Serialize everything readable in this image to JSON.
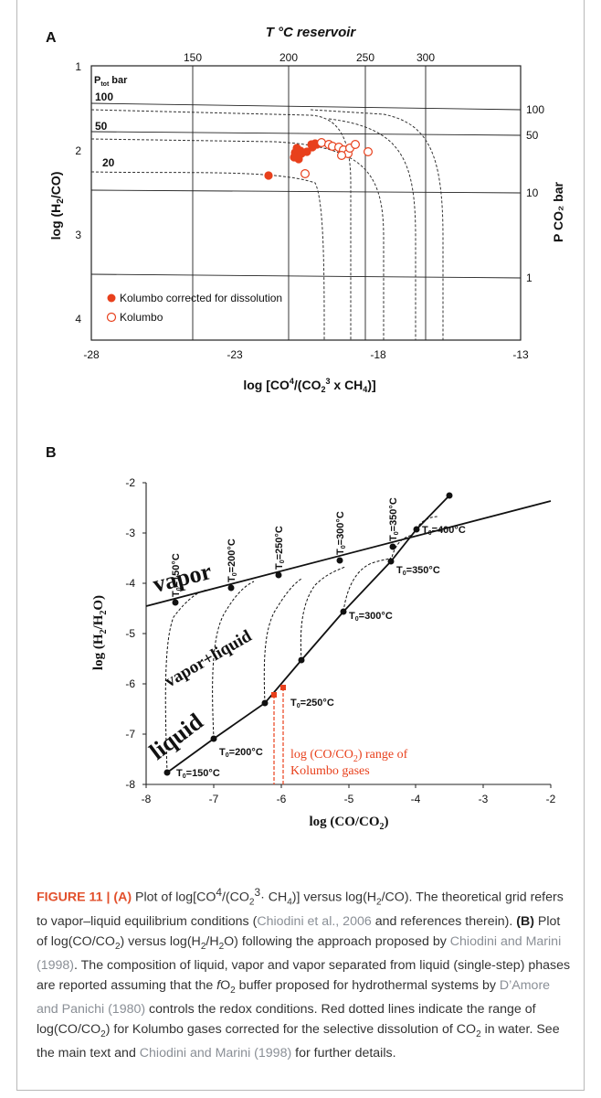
{
  "panel_a": {
    "label": "A",
    "top_axis_title": "T °C reservoir",
    "top_ticks": [
      "150",
      "200",
      "250",
      "300"
    ],
    "x_ticks": [
      "-28",
      "-23",
      "-18",
      "-13"
    ],
    "y_ticks": [
      "1",
      "2",
      "3",
      "4"
    ],
    "ptot_label": "P",
    "ptot_sub": "tot",
    "ptot_unit": "bar",
    "pressure_left_labels": [
      "100",
      "50",
      "20"
    ],
    "pressure_right_labels": [
      "100",
      "50",
      "10",
      "1"
    ],
    "right_axis_title": "P CO₂ bar",
    "y_title_main": "log (H",
    "y_title_sub": "2",
    "y_title_end": "/CO)",
    "x_title_a": "log [CO",
    "x_title_sup1": "4",
    "x_title_b": "/(CO",
    "x_title_sub": "2",
    "x_title_sup2": "3",
    "x_title_c": " x CH",
    "x_title_sub2": "4",
    "x_title_d": ")]",
    "legend_filled": "Kolumbo corrected for dissolution",
    "legend_open": "Kolumbo",
    "marker_color": "#e8401c"
  },
  "panel_b": {
    "label": "B",
    "y_ticks": [
      "-2",
      "-3",
      "-4",
      "-5",
      "-6",
      "-7",
      "-8"
    ],
    "x_ticks": [
      "-8",
      "-7",
      "-6",
      "-5",
      "-4",
      "-3",
      "-2"
    ],
    "vapor_label": "vapor",
    "mix_label": "vapor+liquid",
    "liquid_label": "liquid",
    "t0_prefix": "T",
    "t0_sub": "0",
    "top_temps": [
      "=150°C",
      "=200°C",
      "=250°C",
      "=300°C",
      "=350°C"
    ],
    "liquid_temps": [
      "=400°C",
      "=350°C",
      "=300°C",
      "=250°C",
      "=200°C",
      "=150°C"
    ],
    "annotation_line1": "log (CO/CO",
    "annotation_sub": "2",
    "annotation_line1_end": ") range of",
    "annotation_line2": "Kolumbo gases",
    "x_title": "log (CO/CO",
    "x_title_sub": "2",
    "x_title_end": ")",
    "y_title": "log (H",
    "y_title_sub": "2",
    "y_title_mid": "/H",
    "y_title_sub2": "2",
    "y_title_end": "O)",
    "red_color": "#e8401c"
  },
  "caption": {
    "figure": "FIGURE 11 | (A)",
    "t1": " Plot of log[CO",
    "t1_sup": "4",
    "t2": "/(CO",
    "t2_sub": "2",
    "t2_sup": "3",
    "t3": "· CH",
    "t3_sub": "4",
    "t4": ")] versus log(H",
    "t4_sub": "2",
    "t5": "/CO). The theoretical grid refers to vapor–liquid equilibrium conditions (",
    "ref1": "Chiodini et al., 2006",
    "t6": " and references therein). ",
    "b_label": "(B)",
    "t7": " Plot of log(CO/CO",
    "t7_sub": "2",
    "t8": ") versus log(H",
    "t8_sub": "2",
    "t9": "/H",
    "t9_sub": "2",
    "t10": "O) following the approach proposed by ",
    "ref2": "Chiodini and Marini (1998)",
    "t11": ". The composition of liquid, vapor and vapor separated from liquid (single-step) phases are reported assuming that the ",
    "fo2": "f",
    "fo2_rest": "O",
    "fo2_sub": "2",
    "t12": " buffer proposed for hydrothermal systems by ",
    "ref3": "D’Amore and Panichi (1980)",
    "t13": " controls the redox conditions. Red dotted lines indicate the range of log(CO/CO",
    "t13_sub": "2",
    "t14": ") for Kolumbo gases corrected for the selective dissolution of CO",
    "t14_sub": "2",
    "t15": " in water. See the main text and ",
    "ref4": "Chiodini and Marini (1998)",
    "t16": " for further details."
  }
}
